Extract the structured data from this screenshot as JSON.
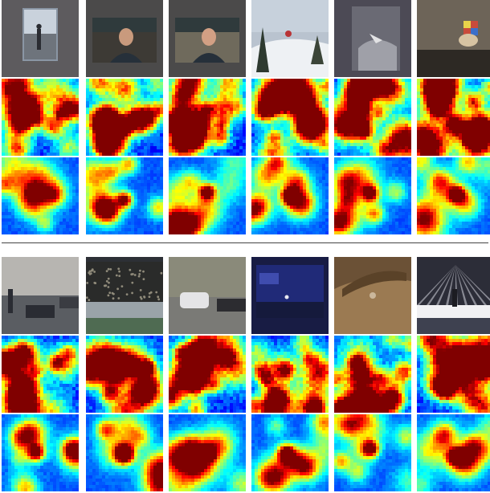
{
  "figure": {
    "groups": [
      {
        "id": "top",
        "frames": [
          {
            "scene": "indoor-walkway",
            "bg": "#5d5b5e",
            "fg": "#2a2c32",
            "accent": "#c9d2dc"
          },
          {
            "scene": "person-portrait",
            "bg": "#4b4a4a",
            "fg": "#3d3a35",
            "accent": "#c99a7d"
          },
          {
            "scene": "person-portrait",
            "bg": "#4b4a4a",
            "fg": "#6f6a5c",
            "accent": "#d2a084"
          },
          {
            "scene": "snow-ski-jump",
            "bg": "#b9c3cf",
            "fg": "#eef1f4",
            "accent": "#b93436"
          },
          {
            "scene": "skydiver-aerial",
            "bg": "#4c4a55",
            "fg": "#9fa0a8",
            "accent": "#e2e2e4"
          },
          {
            "scene": "hand-rubik-cube",
            "bg": "#6d6458",
            "fg": "#2d2924",
            "accent": "#d7c3a2"
          }
        ],
        "map_rows": [
          {
            "type": "noisy-saliency",
            "peaks": [
              [
                0.78,
                0.45
              ],
              [
                0.45,
                0.52
              ],
              [
                0.25,
                0.6
              ]
            ]
          },
          {
            "type": "noisy-saliency",
            "peaks": [
              [
                0.25,
                0.8
              ],
              [
                0.5,
                0.6
              ],
              [
                0.3,
                0.45
              ]
            ]
          },
          {
            "type": "noisy-saliency",
            "peaks": [
              [
                0.5,
                0.4
              ],
              [
                0.7,
                0.6
              ],
              [
                0.35,
                0.75
              ]
            ]
          },
          {
            "type": "noisy-saliency",
            "peaks": [
              [
                0.45,
                0.3
              ],
              [
                0.7,
                0.4
              ],
              [
                0.3,
                0.75
              ]
            ]
          },
          {
            "type": "noisy-saliency",
            "peaks": [
              [
                0.4,
                0.7
              ],
              [
                0.6,
                0.45
              ],
              [
                0.35,
                0.35
              ]
            ]
          },
          {
            "type": "noisy-saliency",
            "peaks": [
              [
                0.25,
                0.4
              ],
              [
                0.5,
                0.6
              ],
              [
                0.7,
                0.8
              ]
            ]
          },
          {
            "type": "center-saliency",
            "peaks": [
              [
                0.45,
                0.45
              ],
              [
                0.65,
                0.5
              ]
            ]
          },
          {
            "type": "center-saliency",
            "peaks": [
              [
                0.5,
                0.55
              ],
              [
                0.25,
                0.7
              ]
            ]
          },
          {
            "type": "center-saliency",
            "peaks": [
              [
                0.5,
                0.45
              ],
              [
                0.3,
                0.3
              ]
            ]
          },
          {
            "type": "center-saliency",
            "peaks": [
              [
                0.5,
                0.5
              ],
              [
                0.6,
                0.3
              ]
            ]
          },
          {
            "type": "center-saliency",
            "peaks": [
              [
                0.47,
                0.47
              ],
              [
                0.8,
                0.45
              ]
            ]
          },
          {
            "type": "center-saliency",
            "peaks": [
              [
                0.52,
                0.48
              ],
              [
                0.3,
                0.3
              ]
            ]
          }
        ]
      },
      {
        "id": "bottom",
        "frames": [
          {
            "scene": "street-traffic",
            "bg": "#8d8c8a",
            "fg": "#2a2c33",
            "accent": "#d5d2cd"
          },
          {
            "scene": "crowd-stage",
            "bg": "#2d3036",
            "fg": "#9aa3a8",
            "accent": "#4f6b52"
          },
          {
            "scene": "parking-car",
            "bg": "#6c6a5f",
            "fg": "#e4e4e6",
            "accent": "#3d3b34"
          },
          {
            "scene": "night-concert",
            "bg": "#181c44",
            "fg": "#3f4cae",
            "accent": "#e7e8f0"
          },
          {
            "scene": "dirt-bike-track",
            "bg": "#6b5136",
            "fg": "#9b7a52",
            "accent": "#cbb79b"
          },
          {
            "scene": "stage-lights",
            "bg": "#3e4150",
            "fg": "#f1f1f3",
            "accent": "#d08c6b"
          }
        ],
        "map_rows": [
          {
            "type": "noisy-saliency",
            "peaks": [
              [
                0.45,
                0.45
              ],
              [
                0.7,
                0.35
              ],
              [
                0.25,
                0.7
              ]
            ]
          },
          {
            "type": "noisy-saliency",
            "peaks": [
              [
                0.45,
                0.45
              ],
              [
                0.8,
                0.4
              ],
              [
                0.3,
                0.75
              ]
            ]
          },
          {
            "type": "noisy-saliency",
            "peaks": [
              [
                0.4,
                0.4
              ],
              [
                0.6,
                0.65
              ],
              [
                0.75,
                0.3
              ]
            ]
          },
          {
            "type": "noisy-saliency",
            "peaks": [
              [
                0.45,
                0.45
              ],
              [
                0.75,
                0.3
              ],
              [
                0.2,
                0.6
              ]
            ]
          },
          {
            "type": "noisy-saliency",
            "peaks": [
              [
                0.6,
                0.55
              ],
              [
                0.3,
                0.35
              ],
              [
                0.75,
                0.8
              ]
            ]
          },
          {
            "type": "noisy-saliency",
            "peaks": [
              [
                0.3,
                0.3
              ],
              [
                0.6,
                0.5
              ],
              [
                0.4,
                0.75
              ],
              [
                0.8,
                0.35
              ]
            ]
          },
          {
            "type": "center-saliency",
            "peaks": [
              [
                0.45,
                0.5
              ],
              [
                0.25,
                0.3
              ]
            ]
          },
          {
            "type": "center-saliency",
            "peaks": [
              [
                0.5,
                0.5
              ],
              [
                0.7,
                0.3
              ]
            ]
          },
          {
            "type": "center-saliency",
            "peaks": [
              [
                0.5,
                0.5
              ],
              [
                0.3,
                0.4
              ]
            ]
          },
          {
            "type": "center-saliency",
            "peaks": [
              [
                0.45,
                0.5
              ],
              [
                0.7,
                0.7
              ]
            ]
          },
          {
            "type": "center-saliency",
            "peaks": [
              [
                0.47,
                0.45
              ],
              [
                0.3,
                0.75
              ]
            ]
          },
          {
            "type": "center-saliency",
            "peaks": [
              [
                0.5,
                0.55
              ],
              [
                0.35,
                0.3
              ],
              [
                0.75,
                0.4
              ]
            ]
          }
        ]
      }
    ],
    "colormap": [
      "#00008f",
      "#0000ff",
      "#0080ff",
      "#00ffff",
      "#80ff80",
      "#ffff00",
      "#ff8000",
      "#ff0000",
      "#800000"
    ]
  }
}
